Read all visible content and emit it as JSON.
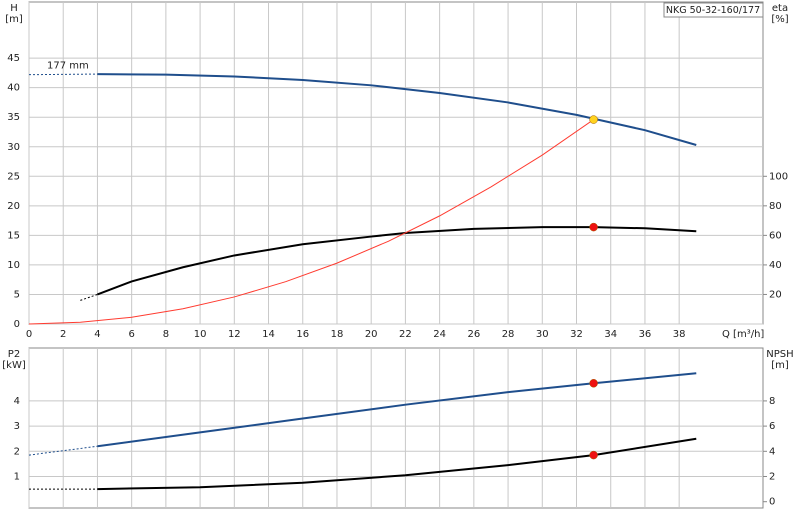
{
  "chart_data": [
    {
      "type": "line",
      "title": "NKG 50-32-160/177",
      "ylabel": "H",
      "yunit": "[m]",
      "y2label": "eta",
      "y2unit": "[%]",
      "xlabel": "Q [m³/h]",
      "annotation": "177 mm",
      "xlim": [
        0,
        42.9
      ],
      "xticks": [
        0,
        2,
        4,
        6,
        8,
        10,
        12,
        14,
        16,
        18,
        20,
        22,
        24,
        26,
        28,
        30,
        32,
        34,
        36,
        38
      ],
      "ylim": [
        0,
        54.5
      ],
      "yticks": [
        0,
        5,
        10,
        15,
        20,
        25,
        30,
        35,
        40,
        45
      ],
      "y2lim": [
        0,
        218
      ],
      "y2ticks": [
        20,
        40,
        60,
        80,
        100
      ],
      "grid": true,
      "xtick_labels": true,
      "series": [
        {
          "style": "dashed",
          "color": "#1f4e8c",
          "x": [
            0,
            4
          ],
          "values": [
            42.2,
            42.3
          ]
        },
        {
          "style": "solid",
          "color": "#1f4e8c",
          "x": [
            4,
            8,
            12,
            16,
            20,
            24,
            28,
            32,
            36,
            39
          ],
          "values": [
            42.3,
            42.2,
            41.9,
            41.3,
            40.4,
            39.1,
            37.5,
            35.4,
            32.8,
            30.3
          ]
        },
        {
          "style": "dashed",
          "color": "#000000",
          "axis": "y2",
          "x": [
            3,
            4
          ],
          "values": [
            16,
            20
          ]
        },
        {
          "style": "solid",
          "color": "#000000",
          "axis": "y2",
          "x": [
            4,
            6,
            9,
            12,
            16,
            20,
            22,
            26,
            30,
            33,
            36,
            39
          ],
          "values": [
            20,
            28.8,
            38.4,
            46.4,
            54,
            59.2,
            61.6,
            64.4,
            65.6,
            65.6,
            64.8,
            62.8
          ]
        },
        {
          "style": "thin",
          "color": "#ff3b30",
          "x": [
            0,
            3,
            6,
            9,
            12,
            15,
            18,
            21,
            24,
            27,
            30,
            33
          ],
          "values": [
            0,
            0.29,
            1.14,
            2.58,
            4.58,
            7.16,
            10.3,
            14.0,
            18.3,
            23.2,
            28.6,
            34.6
          ]
        },
        {
          "style": "point",
          "color": "#ffd21f",
          "x": [
            33
          ],
          "values": [
            34.6
          ]
        },
        {
          "style": "point",
          "color": "#ee1111",
          "axis": "y2",
          "x": [
            33
          ],
          "values": [
            65.6
          ]
        }
      ]
    },
    {
      "type": "line",
      "ylabel": "P2",
      "yunit": "[kW]",
      "y2label": "NPSH",
      "y2unit": "[m]",
      "xlim": [
        0,
        42.9
      ],
      "xticks": [
        0,
        2,
        4,
        6,
        8,
        10,
        12,
        14,
        16,
        18,
        20,
        22,
        24,
        26,
        28,
        30,
        32,
        34,
        36,
        38
      ],
      "ylim": [
        -0.25,
        6.1
      ],
      "yticks": [
        1,
        2,
        3,
        4
      ],
      "y2lim": [
        -0.5,
        12.2
      ],
      "y2ticks": [
        0,
        2,
        4,
        6,
        8
      ],
      "grid": true,
      "xtick_labels": false,
      "series": [
        {
          "style": "dashed",
          "color": "#1f4e8c",
          "x": [
            0,
            4
          ],
          "values": [
            1.85,
            2.2
          ]
        },
        {
          "style": "solid",
          "color": "#1f4e8c",
          "x": [
            4,
            10,
            16,
            22,
            28,
            33,
            39
          ],
          "values": [
            2.2,
            2.75,
            3.3,
            3.85,
            4.35,
            4.7,
            5.1
          ]
        },
        {
          "style": "dashed",
          "color": "#000000",
          "axis": "y2",
          "x": [
            0,
            4
          ],
          "values": [
            1.0,
            1.0
          ]
        },
        {
          "style": "solid",
          "color": "#000000",
          "axis": "y2",
          "x": [
            4,
            10,
            16,
            22,
            28,
            33,
            39
          ],
          "values": [
            1.0,
            1.15,
            1.5,
            2.1,
            2.9,
            3.7,
            5.0
          ]
        },
        {
          "style": "point",
          "color": "#ee1111",
          "x": [
            33
          ],
          "values": [
            4.7
          ]
        },
        {
          "style": "point",
          "color": "#ee1111",
          "axis": "y2",
          "x": [
            33
          ],
          "values": [
            3.7
          ]
        }
      ]
    }
  ]
}
